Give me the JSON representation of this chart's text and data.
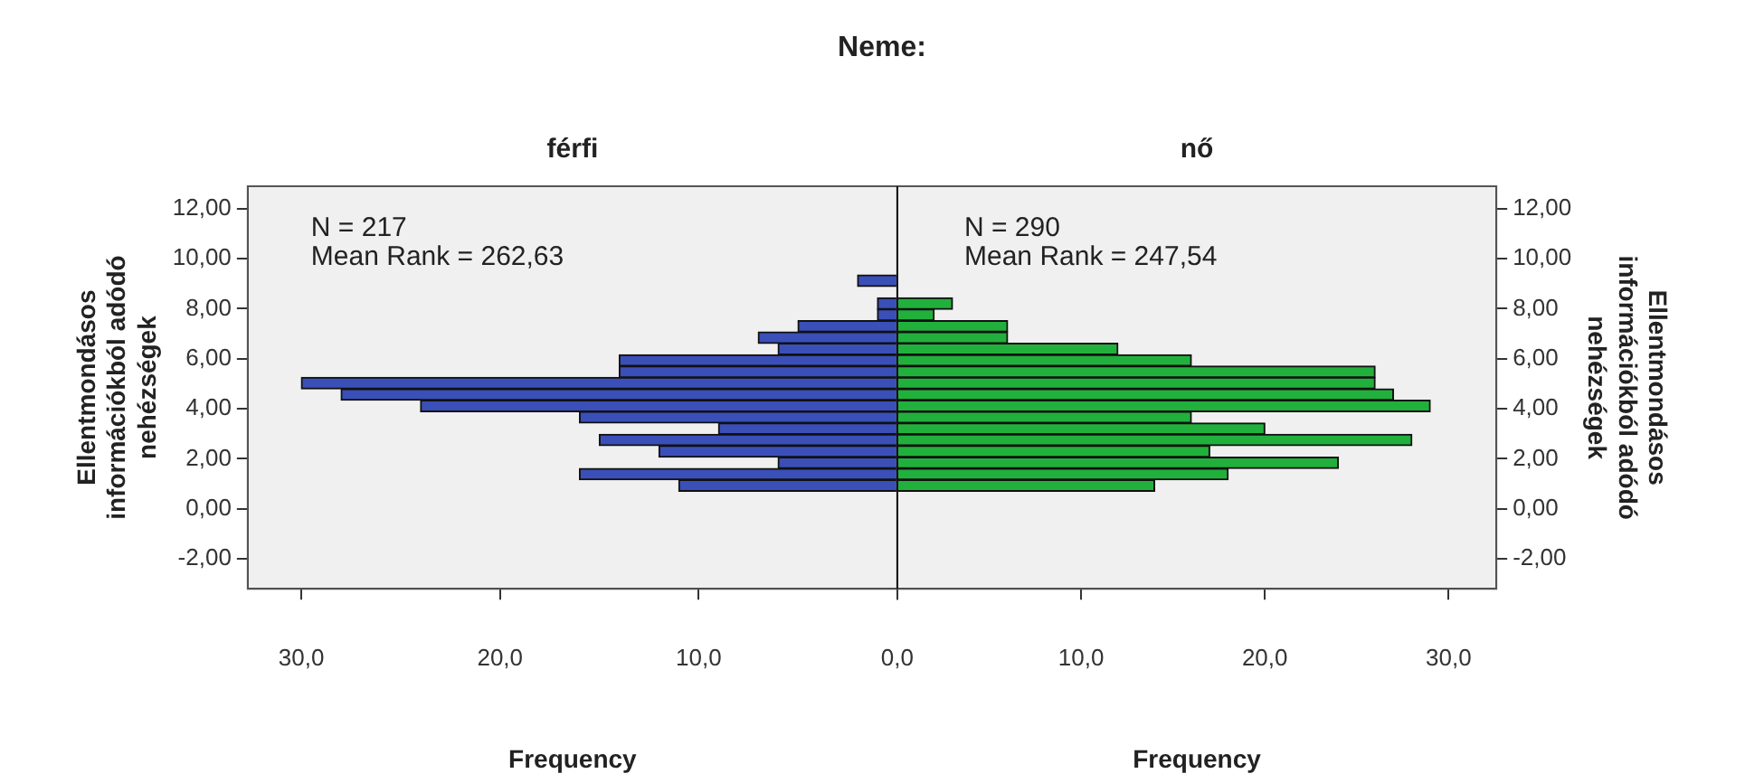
{
  "chart_data": [
    {
      "type": "histogram",
      "title": "Neme:",
      "subtitle": "férfi",
      "orientation": "horizontal",
      "xlabel": "Frequency",
      "ylabel": "Ellentmondásos információkból adódó nehézségek",
      "bins": [
        0.7,
        1.16,
        1.61,
        2.07,
        2.52,
        2.98,
        3.43,
        3.89,
        4.34,
        4.8,
        5.25,
        5.71,
        6.16,
        6.62,
        7.07,
        7.53,
        7.98,
        8.44,
        8.89,
        9.35
      ],
      "values": [
        11,
        16,
        6,
        12,
        15,
        9,
        16,
        24,
        28,
        30,
        14,
        14,
        6,
        7,
        5,
        1,
        1,
        0,
        2
      ],
      "color": "#3a4fb8",
      "xlim": [
        32.7,
        0
      ],
      "xticks": [
        {
          "value": 30,
          "label": "30,0"
        },
        {
          "value": 20,
          "label": "20,0"
        },
        {
          "value": 10,
          "label": "10,0"
        },
        {
          "value": 0,
          "label": "0,0"
        }
      ],
      "ylim": [
        -3.2,
        12.9
      ],
      "yticks": [
        {
          "value": -2,
          "label": "-2,00"
        },
        {
          "value": 0,
          "label": "0,00"
        },
        {
          "value": 2,
          "label": "2,00"
        },
        {
          "value": 4,
          "label": "4,00"
        },
        {
          "value": 6,
          "label": "6,00"
        },
        {
          "value": 8,
          "label": "8,00"
        },
        {
          "value": 10,
          "label": "10,00"
        },
        {
          "value": 12,
          "label": "12,00"
        }
      ],
      "annotations": [
        "N = 217",
        "Mean Rank = 262,63"
      ]
    },
    {
      "type": "histogram",
      "subtitle": "nő",
      "orientation": "horizontal",
      "xlabel": "Frequency",
      "ylabel": "Ellentmondásos információkból adódó nehézségek",
      "bins": [
        0.7,
        1.16,
        1.61,
        2.07,
        2.52,
        2.98,
        3.43,
        3.89,
        4.34,
        4.8,
        5.25,
        5.71,
        6.16,
        6.62,
        7.07,
        7.53,
        7.98,
        8.44,
        8.89,
        9.35
      ],
      "values": [
        14,
        18,
        24,
        17,
        28,
        20,
        16,
        29,
        27,
        26,
        26,
        16,
        12,
        6,
        6,
        2,
        3,
        0,
        0
      ],
      "color": "#22b03c",
      "xlim": [
        0,
        32.6
      ],
      "xticks": [
        {
          "value": 0,
          "label": null
        },
        {
          "value": 10,
          "label": "10,0"
        },
        {
          "value": 20,
          "label": "20,0"
        },
        {
          "value": 30,
          "label": "30,0"
        }
      ],
      "ylim": [
        -3.2,
        12.9
      ],
      "yticks": [
        {
          "value": -2,
          "label": "-2,00"
        },
        {
          "value": 0,
          "label": "0,00"
        },
        {
          "value": 2,
          "label": "2,00"
        },
        {
          "value": 4,
          "label": "4,00"
        },
        {
          "value": 6,
          "label": "6,00"
        },
        {
          "value": 8,
          "label": "8,00"
        },
        {
          "value": 10,
          "label": "10,00"
        },
        {
          "value": 12,
          "label": "12,00"
        }
      ],
      "annotations": [
        "N = 290",
        "Mean Rank = 247,54"
      ]
    }
  ]
}
